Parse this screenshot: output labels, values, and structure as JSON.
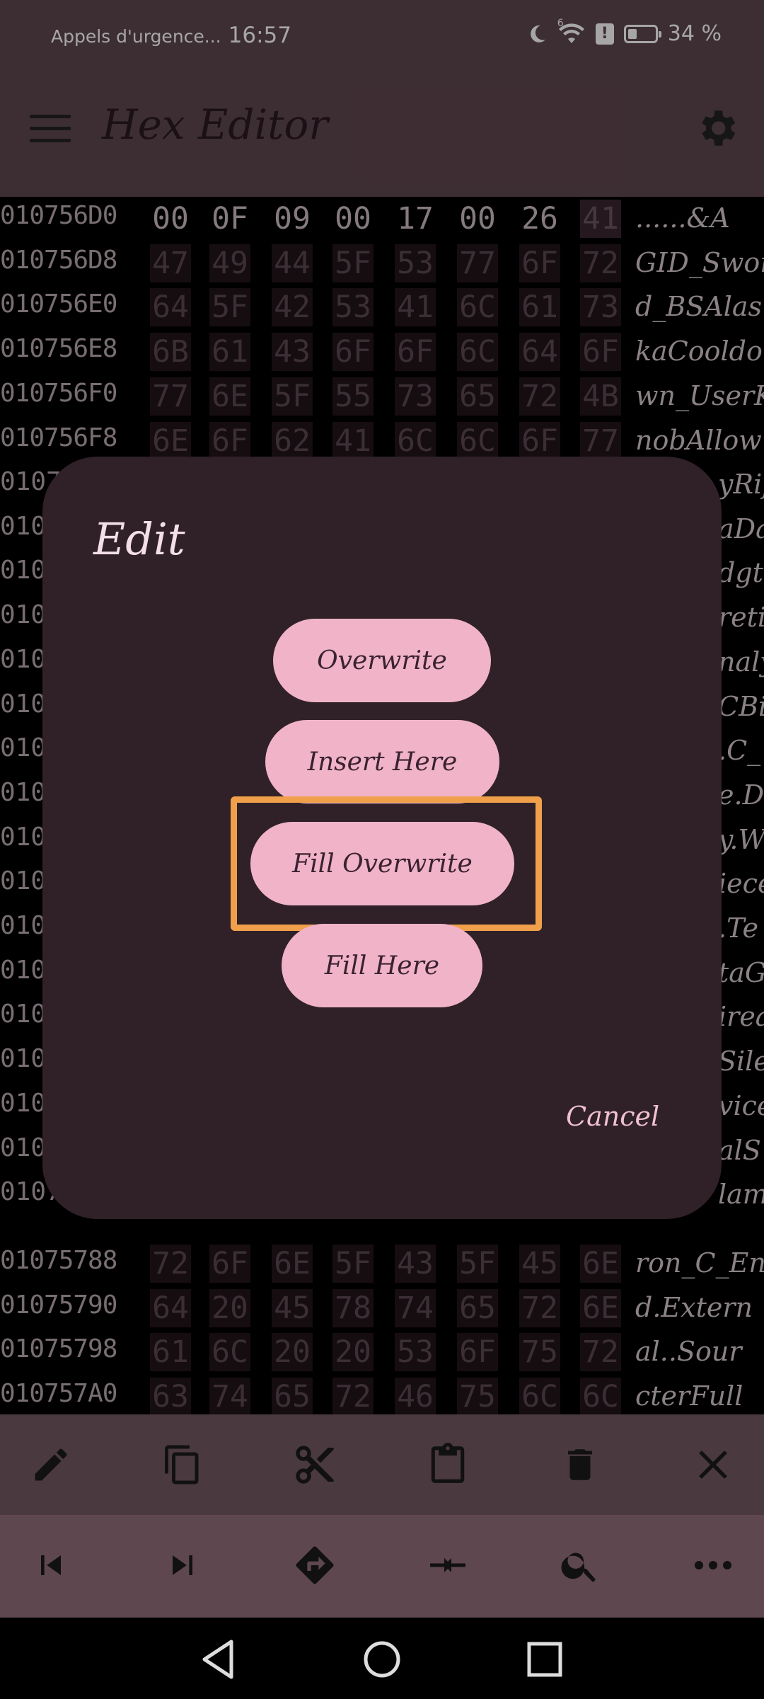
{
  "status_bar": {
    "carrier": "Appels d'urgence...",
    "time": "16:57",
    "battery": "34 %",
    "battery_level": 0.34,
    "network": "6"
  },
  "app_bar": {
    "title": "Hex Editor",
    "menu_icon": "hamburger-menu-icon",
    "settings_icon": "gear-icon"
  },
  "hex_rows_top": [
    {
      "addr": "010756D0",
      "bytes": [
        "00",
        "0F",
        "09",
        "00",
        "17",
        "00",
        "26",
        "41"
      ],
      "ascii": "......&A"
    },
    {
      "addr": "010756D8",
      "bytes": [
        "47",
        "49",
        "44",
        "5F",
        "53",
        "77",
        "6F",
        "72"
      ],
      "ascii": "GID_Swor"
    },
    {
      "addr": "010756E0",
      "bytes": [
        "64",
        "5F",
        "42",
        "53",
        "41",
        "6C",
        "61",
        "73"
      ],
      "ascii": "d_BSAlas"
    },
    {
      "addr": "010756E8",
      "bytes": [
        "6B",
        "61",
        "43",
        "6F",
        "6F",
        "6C",
        "64",
        "6F"
      ],
      "ascii": "kaCooldo"
    },
    {
      "addr": "010756F0",
      "bytes": [
        "77",
        "6E",
        "5F",
        "55",
        "73",
        "65",
        "72",
        "4B"
      ],
      "ascii": "wn_UserK"
    },
    {
      "addr": "010756F8",
      "bytes": [
        "6E",
        "6F",
        "62",
        "41",
        "6C",
        "6C",
        "6F",
        "77"
      ],
      "ascii": "nobAllow"
    }
  ],
  "hex_rows_mid": [
    {
      "addr": "0107",
      "ascii": "yRif"
    },
    {
      "addr": "010",
      "ascii": "aDa"
    },
    {
      "addr": "010",
      "ascii": "dgt"
    },
    {
      "addr": "010",
      "ascii": "reti"
    },
    {
      "addr": "010",
      "ascii": "naly"
    },
    {
      "addr": "010",
      "ascii": "CBil"
    },
    {
      "addr": "010",
      "ascii": ".C_"
    },
    {
      "addr": "010",
      "ascii": "e.D"
    },
    {
      "addr": "010",
      "ascii": "y.W"
    },
    {
      "addr": "010",
      "ascii": "iece"
    },
    {
      "addr": "010",
      "ascii": ".Te"
    },
    {
      "addr": "010",
      "ascii": "taG"
    },
    {
      "addr": "010",
      "ascii": "irea"
    },
    {
      "addr": "010",
      "ascii": "Sile"
    },
    {
      "addr": "010",
      "ascii": "vice"
    },
    {
      "addr": "010",
      "ascii": "alS"
    },
    {
      "addr": "0107",
      "ascii": "lamt"
    }
  ],
  "hex_rows_bottom": [
    {
      "addr": "01075788",
      "bytes": [
        "72",
        "6F",
        "6E",
        "5F",
        "43",
        "5F",
        "45",
        "6E"
      ],
      "ascii": "ron_C_En"
    },
    {
      "addr": "01075790",
      "bytes": [
        "64",
        "20",
        "45",
        "78",
        "74",
        "65",
        "72",
        "6E"
      ],
      "ascii": "d.Extern"
    },
    {
      "addr": "01075798",
      "bytes": [
        "61",
        "6C",
        "20",
        "20",
        "53",
        "6F",
        "75",
        "72"
      ],
      "ascii": "al..Sour"
    },
    {
      "addr": "010757A0",
      "bytes": [
        "63",
        "74",
        "65",
        "72",
        "46",
        "75",
        "6C",
        "6C"
      ],
      "ascii": "cterFull"
    }
  ],
  "dialog": {
    "title": "Edit",
    "buttons": {
      "overwrite": "Overwrite",
      "insert_here": "Insert Here",
      "fill_overwrite": "Fill Overwrite",
      "fill_here": "Fill Here"
    },
    "cancel": "Cancel"
  },
  "toolbar_top": [
    "pencil-icon",
    "copy-icon",
    "scissors-icon",
    "clipboard-icon",
    "trash-icon",
    "close-icon"
  ],
  "toolbar_bottom": [
    "go-to-start-icon",
    "go-to-end-icon",
    "go-to-offset-icon",
    "compare-icon",
    "search-icon",
    "more-options-icon"
  ],
  "nav_bar": [
    "back-triangle-icon",
    "home-circle-icon",
    "recents-square-icon"
  ],
  "colors": {
    "app_bar": "#5f474f",
    "dialog_bg": "#2f2127",
    "pill_bg": "#f0b3c7",
    "highlight": "#f0a04b"
  }
}
